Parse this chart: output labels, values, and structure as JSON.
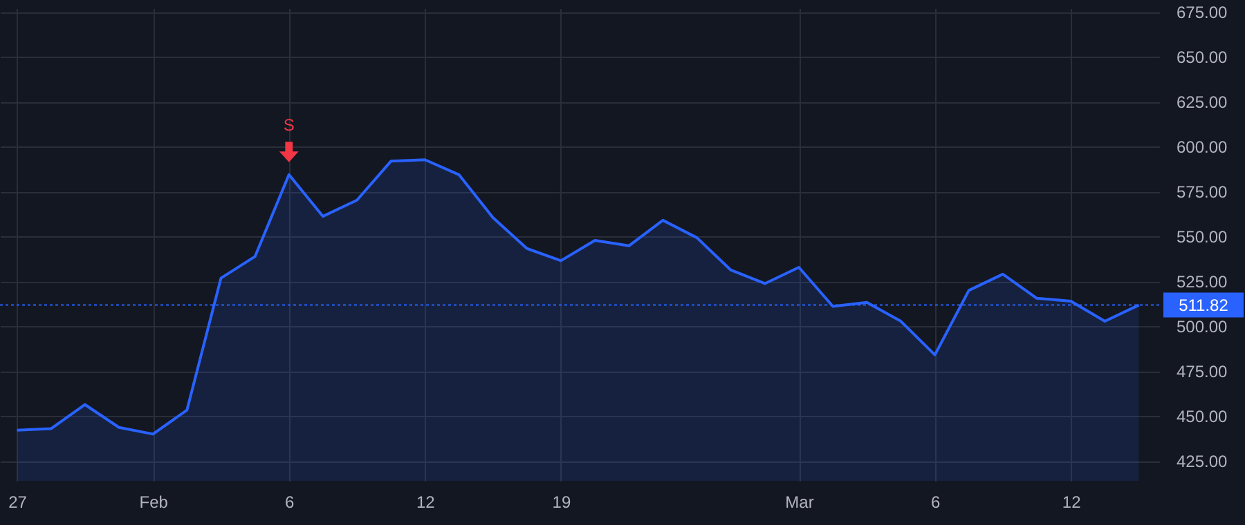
{
  "chart_data": {
    "type": "area",
    "categories": [
      "27",
      null,
      null,
      null,
      "Feb",
      null,
      null,
      null,
      "6",
      null,
      null,
      null,
      "12",
      null,
      null,
      null,
      "19",
      null,
      null,
      null,
      null,
      null,
      null,
      "Mar",
      null,
      null,
      null,
      "6",
      null,
      null,
      null,
      "12",
      null,
      null
    ],
    "series": [
      {
        "color": "#2962ff",
        "values": [
          442.2,
          443,
          456.4,
          443.7,
          440,
          453.4,
          526.8,
          538.8,
          584.4,
          561.2,
          570.2,
          591.9,
          592.7,
          584.4,
          560.5,
          543.3,
          536.5,
          547.8,
          544.8,
          559,
          549.3,
          531.3,
          523.8,
          532.8,
          511.1,
          513.3,
          502.8,
          484.1,
          520,
          529,
          515.6,
          514,
          502.8,
          511.82
        ]
      }
    ],
    "ylim": [
      414,
      677
    ],
    "yticks": [
      {
        "value": 425,
        "label": "425.00"
      },
      {
        "value": 450,
        "label": "450.00"
      },
      {
        "value": 475,
        "label": "475.00"
      },
      {
        "value": 500,
        "label": "500.00"
      },
      {
        "value": 525,
        "label": "525.00"
      },
      {
        "value": 550,
        "label": "550.00"
      },
      {
        "value": 575,
        "label": "575.00"
      },
      {
        "value": 600,
        "label": "600.00"
      },
      {
        "value": 625,
        "label": "625.00"
      },
      {
        "value": 650,
        "label": "650.00"
      },
      {
        "value": 675,
        "label": "675.00"
      }
    ],
    "ref_lines": [
      {
        "axis": "y",
        "value": 511.82,
        "label": "511.82",
        "color": "#2962ff",
        "line_style": "dotted"
      }
    ],
    "annotations": [
      {
        "text": "S",
        "x": "6",
        "y": 584.4
      }
    ],
    "grid": true,
    "marker": "none",
    "line_style": "solid"
  }
}
